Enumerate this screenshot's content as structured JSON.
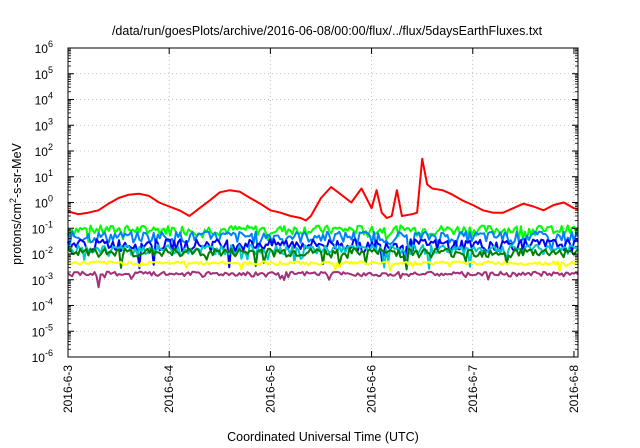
{
  "chart_data": {
    "type": "line",
    "title": "/data/run/goesPlots/archive/2016-06-08/00:00/flux/../flux/5daysEarthFluxes.txt",
    "xlabel": "Coordinated Universal Time (UTC)",
    "ylabel": {
      "prefix": "protons/cm",
      "sup": "2",
      "suffix": "-s-sr-MeV"
    },
    "y_scale": "log",
    "ylim": [
      1e-06,
      1000000.0
    ],
    "y_ticks": [
      {
        "value": 1e-06,
        "base": "10",
        "exp": "-6"
      },
      {
        "value": 1e-05,
        "base": "10",
        "exp": "-5"
      },
      {
        "value": 0.0001,
        "base": "10",
        "exp": "-4"
      },
      {
        "value": 0.001,
        "base": "10",
        "exp": "-3"
      },
      {
        "value": 0.01,
        "base": "10",
        "exp": "-2"
      },
      {
        "value": 0.1,
        "base": "10",
        "exp": "-1"
      },
      {
        "value": 1,
        "base": "10",
        "exp": "0"
      },
      {
        "value": 10,
        "base": "10",
        "exp": "1"
      },
      {
        "value": 100,
        "base": "10",
        "exp": "2"
      },
      {
        "value": 1000,
        "base": "10",
        "exp": "3"
      },
      {
        "value": 10000,
        "base": "10",
        "exp": "4"
      },
      {
        "value": 100000,
        "base": "10",
        "exp": "5"
      },
      {
        "value": 1000000,
        "base": "10",
        "exp": "6"
      }
    ],
    "x_ticks": [
      "2016-6-3",
      "2016-6-4",
      "2016-6-5",
      "2016-6-6",
      "2016-6-7",
      "2016-6-8"
    ],
    "x_range_days": [
      0,
      5.04
    ],
    "grid": true,
    "series": [
      {
        "color": "#ff0000",
        "x": [
          0,
          0.1,
          0.2,
          0.3,
          0.4,
          0.5,
          0.6,
          0.7,
          0.8,
          0.9,
          1.0,
          1.1,
          1.2,
          1.3,
          1.4,
          1.5,
          1.6,
          1.7,
          1.8,
          1.9,
          2.0,
          2.1,
          2.2,
          2.3,
          2.35,
          2.4,
          2.5,
          2.6,
          2.7,
          2.8,
          2.9,
          3.0,
          3.05,
          3.1,
          3.15,
          3.2,
          3.25,
          3.3,
          3.4,
          3.45,
          3.5,
          3.55,
          3.6,
          3.7,
          3.75,
          3.8,
          3.9,
          4.0,
          4.1,
          4.2,
          4.3,
          4.4,
          4.5,
          4.6,
          4.7,
          4.8,
          4.9,
          5.0,
          5.04
        ],
        "y": [
          0.45,
          0.35,
          0.4,
          0.5,
          0.9,
          1.5,
          2.0,
          2.2,
          1.8,
          1.0,
          0.7,
          0.5,
          0.3,
          0.6,
          1.2,
          2.5,
          3.0,
          2.6,
          1.5,
          0.9,
          0.5,
          0.4,
          0.3,
          0.25,
          0.2,
          0.3,
          1.5,
          4.0,
          2.0,
          1.0,
          3.5,
          0.6,
          3.0,
          0.4,
          0.25,
          0.3,
          3.0,
          0.3,
          0.35,
          0.4,
          50,
          5.0,
          3.5,
          3.0,
          2.5,
          2.0,
          1.2,
          0.8,
          0.5,
          0.4,
          0.4,
          0.6,
          0.9,
          0.7,
          0.5,
          0.8,
          1.0,
          0.6,
          0.55
        ]
      },
      {
        "color": "#00ff00",
        "base": 0.09,
        "amp": 0.22,
        "dip": 0.35
      },
      {
        "color": "#0080ff",
        "base": 0.05,
        "amp": 0.25,
        "dip": 0.4
      },
      {
        "color": "#0000ff",
        "base": 0.025,
        "amp": 0.25,
        "dip": 0.5
      },
      {
        "color": "#00c8c8",
        "base": 0.016,
        "amp": 0.2,
        "dip": 0.5
      },
      {
        "color": "#008000",
        "base": 0.012,
        "amp": 0.2,
        "dip": 0.5
      },
      {
        "color": "#ffff00",
        "base": 0.0045,
        "amp": 0.08,
        "dip": 0.3
      },
      {
        "color": "#a0307a",
        "base": 0.0017,
        "amp": 0.1,
        "dip": 0.2
      }
    ]
  }
}
